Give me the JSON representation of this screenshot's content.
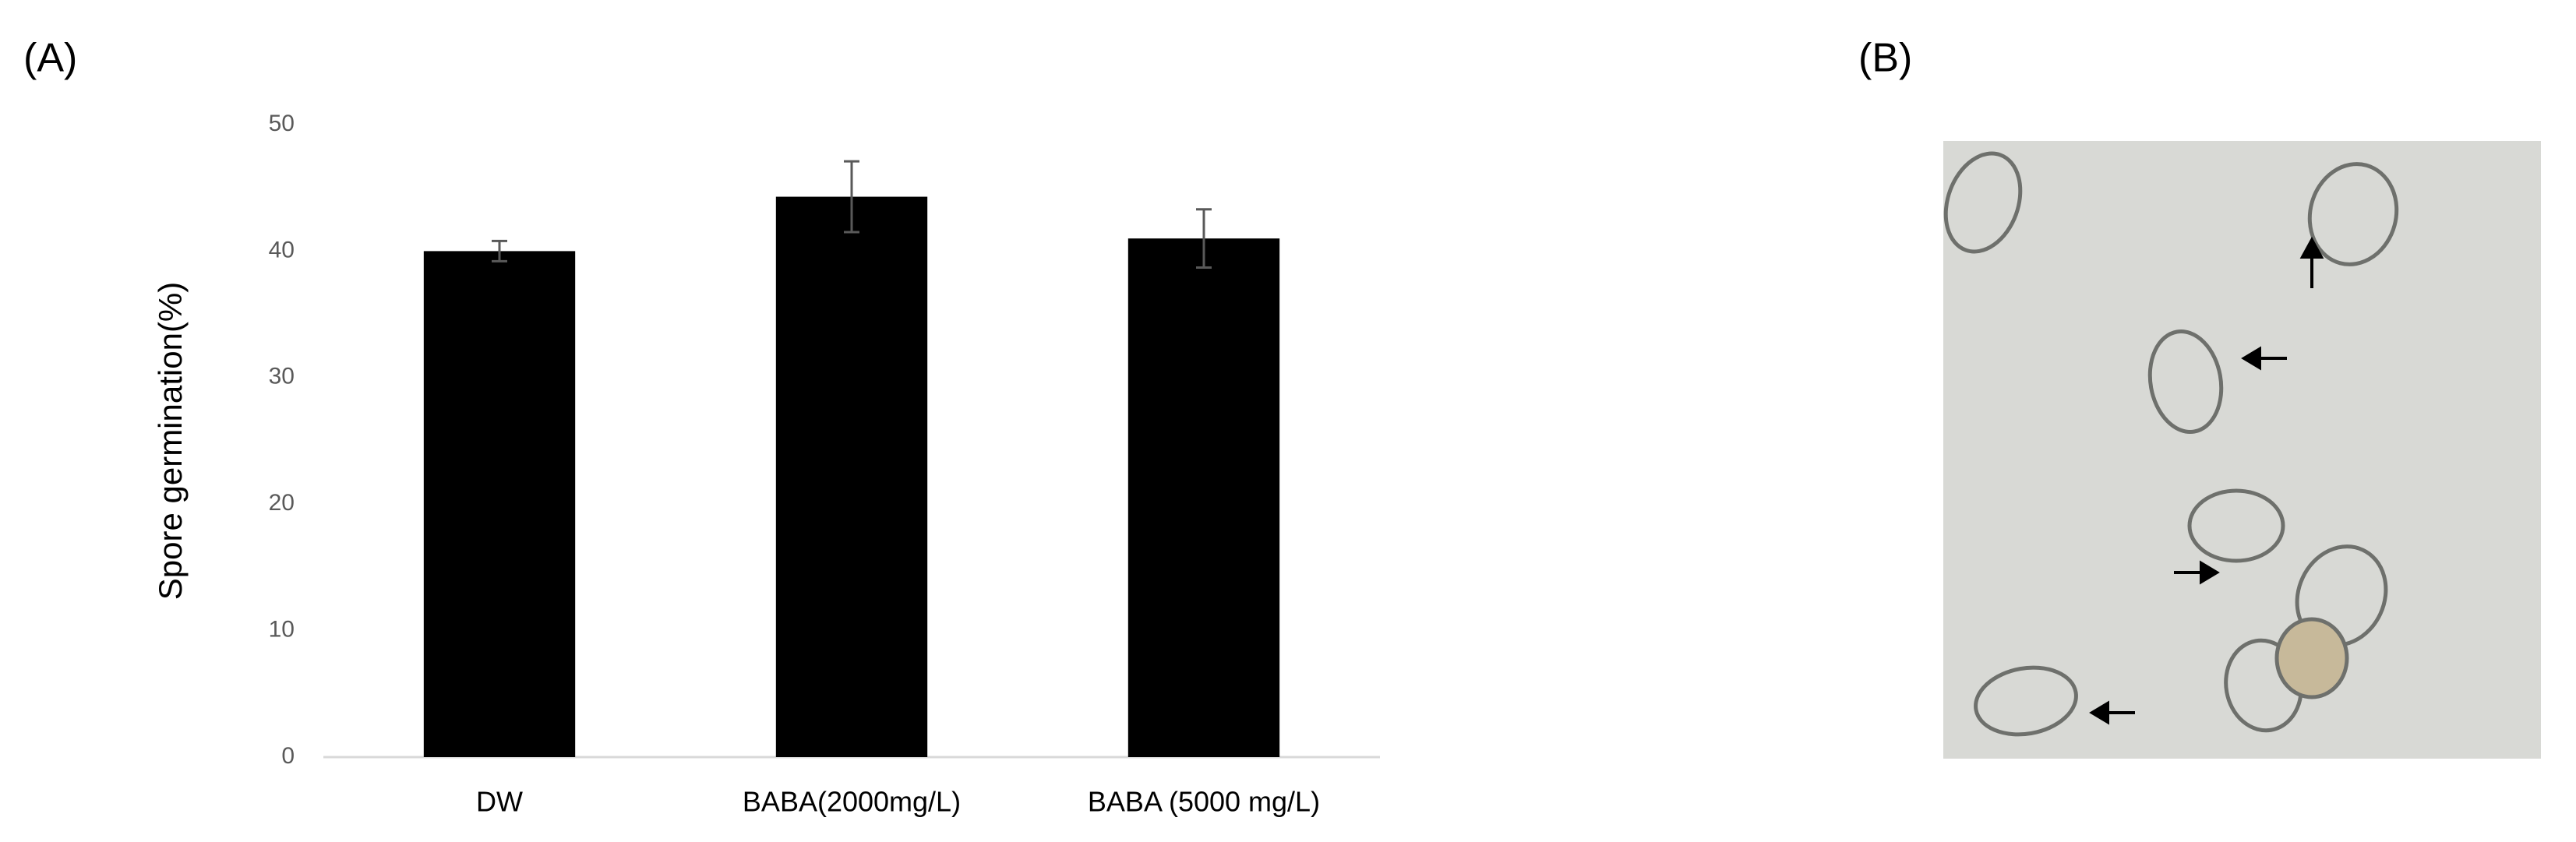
{
  "chart_data": {
    "type": "bar",
    "panel_label": "(A)",
    "ylabel": "Spore germination(%)",
    "categories": [
      "DW",
      "BABA(2000mg/L)",
      "BABA (5000 mg/L)"
    ],
    "values": [
      40,
      44.3,
      41
    ],
    "errors": [
      0.8,
      2.8,
      2.3
    ],
    "color": "#000000",
    "ylim": [
      0,
      50
    ],
    "yticks": [
      0,
      10,
      20,
      30,
      40,
      50
    ],
    "grid": false
  },
  "image_panel": {
    "label": "(B)"
  }
}
